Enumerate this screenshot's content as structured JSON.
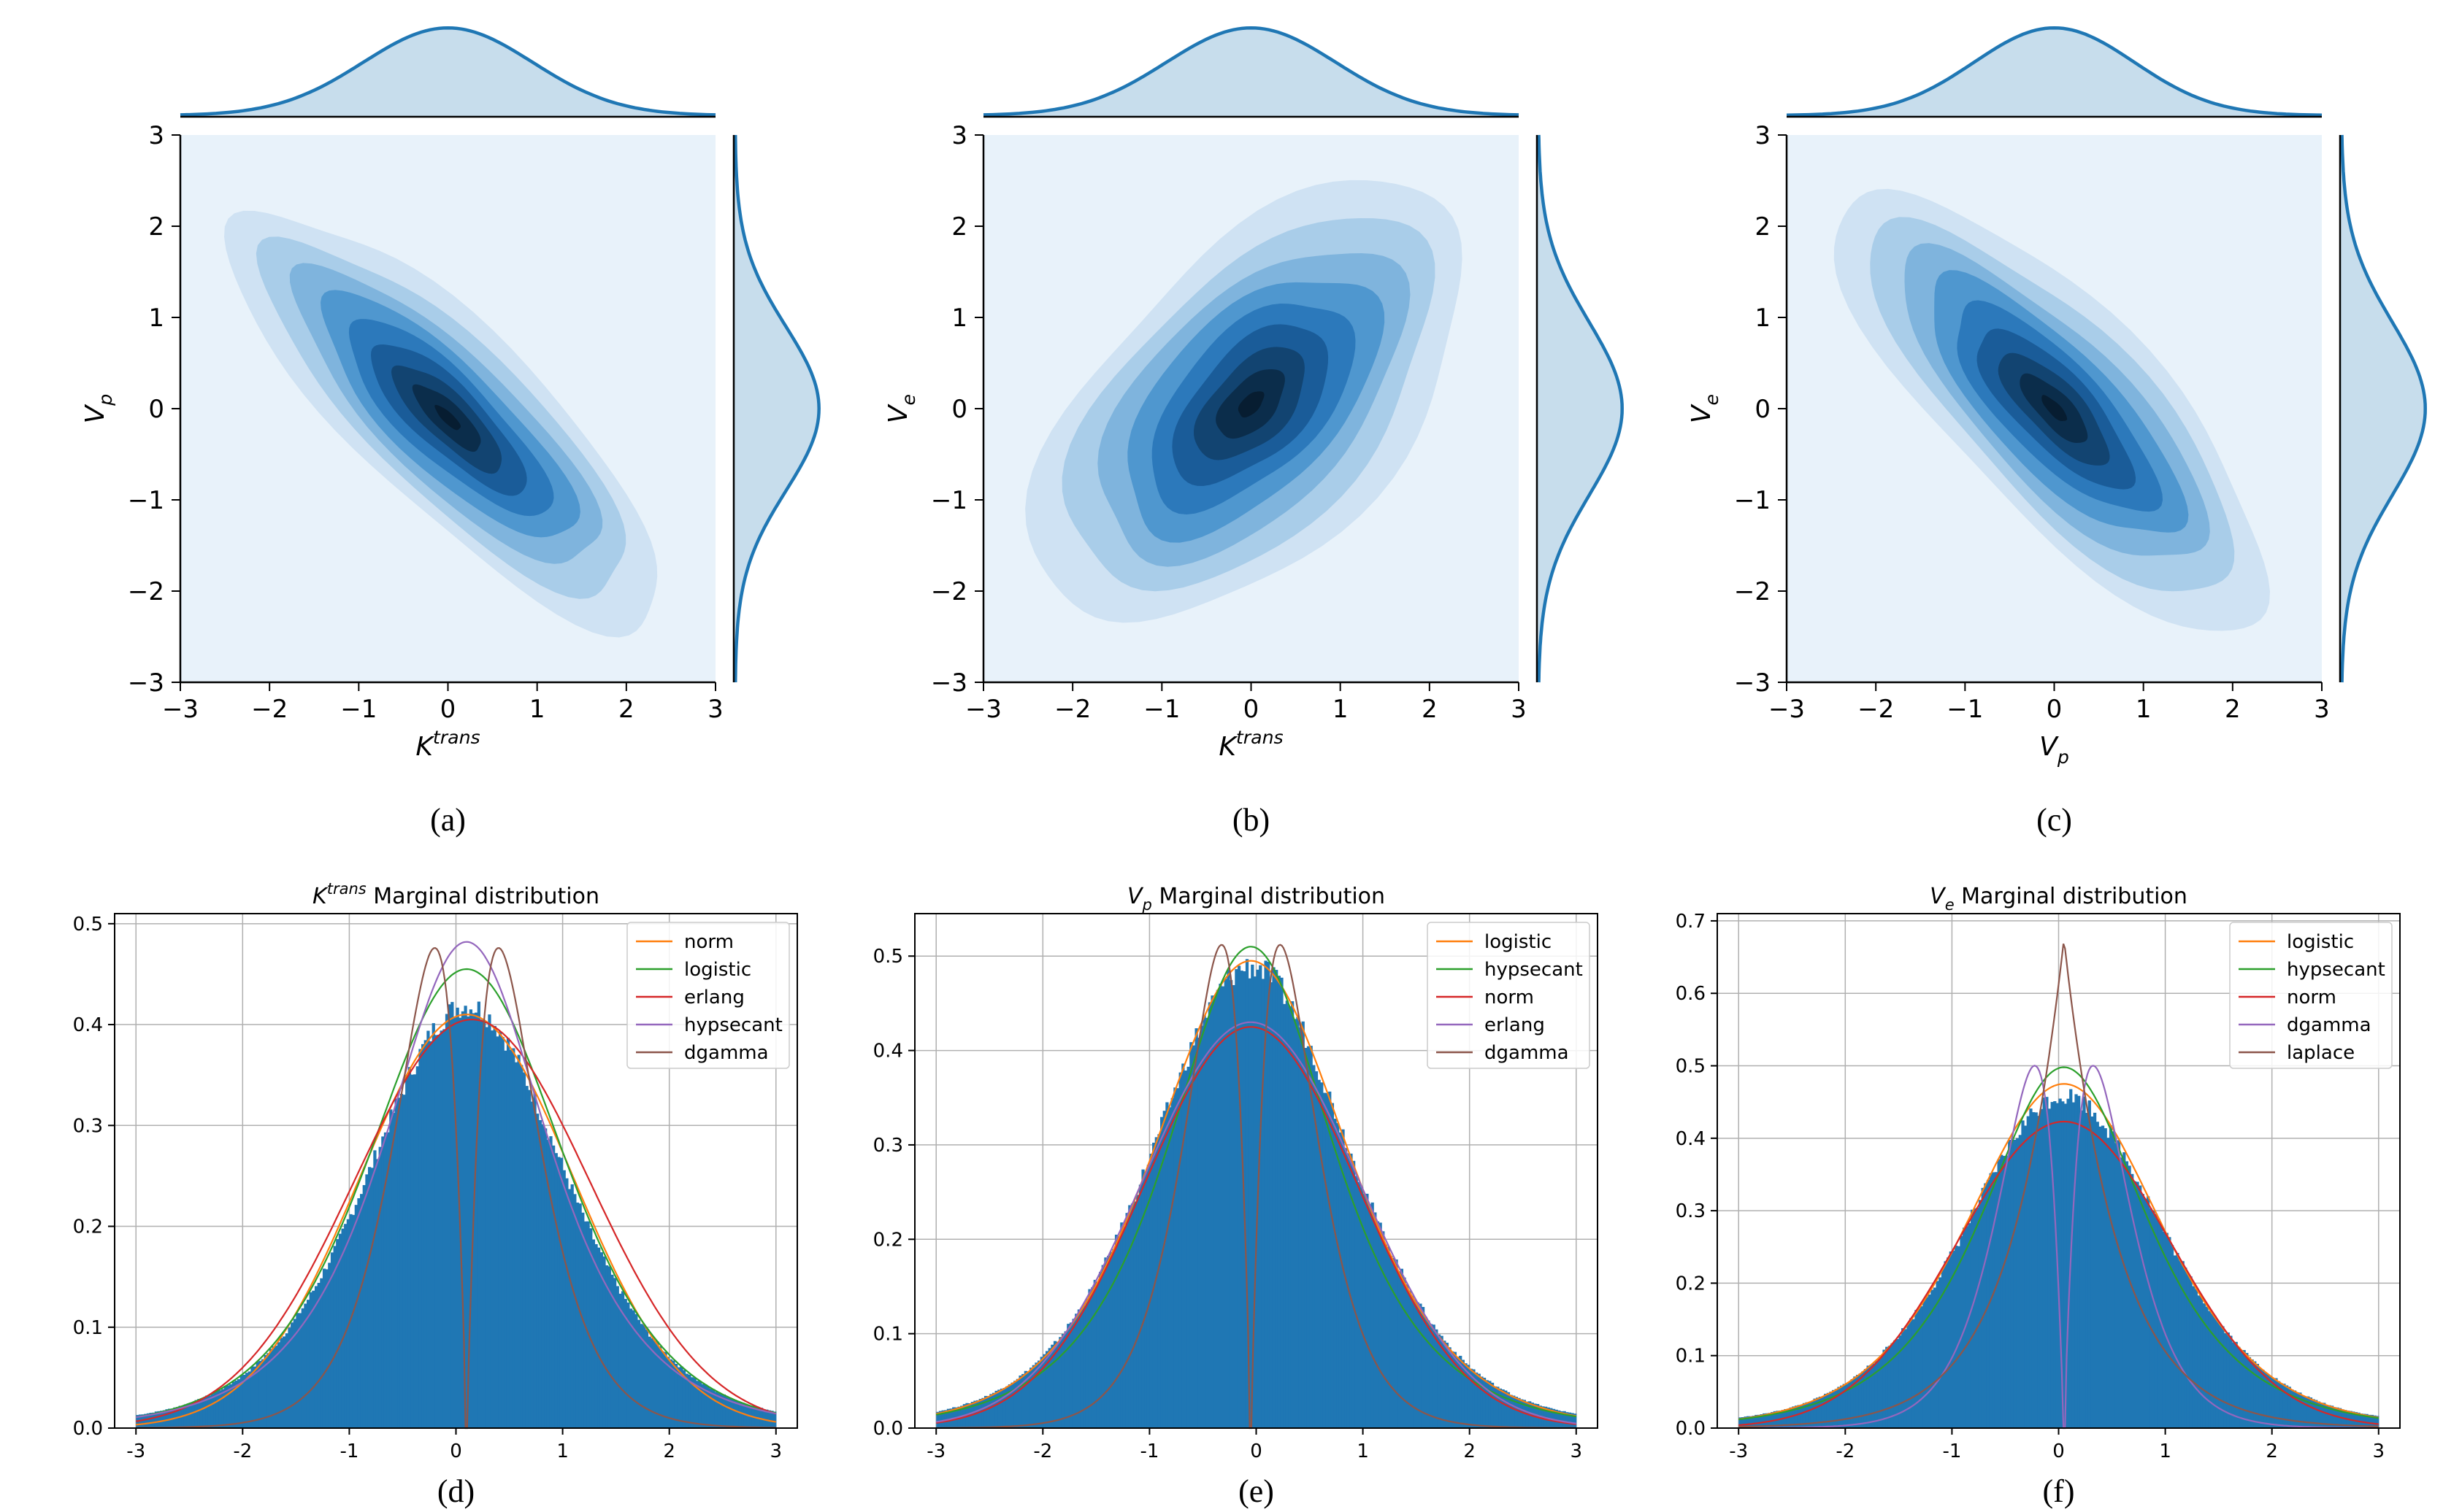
{
  "colors": {
    "fill_blue": "#1f77b4",
    "kde_bg": "#e8f2fa",
    "axis": "#000000",
    "grid": "#b0b0b0",
    "series_palette": [
      "#ff7f0e",
      "#2ca02c",
      "#d62728",
      "#9467bd",
      "#8c564b"
    ]
  },
  "chart_data": [
    {
      "type": "kde2d",
      "id": "a",
      "caption": "(a)",
      "xlabel": "K^trans",
      "xlabel_base": "K",
      "xlabel_sup": "trans",
      "ylabel": "V_p",
      "ylabel_base": "V",
      "ylabel_sub": "p",
      "xlim": [
        -3,
        3
      ],
      "ylim": [
        -3,
        3
      ],
      "xticks": [
        "−3",
        "−2",
        "−1",
        "0",
        "1",
        "2",
        "3"
      ],
      "yticks": [
        "−3",
        "−2",
        "−1",
        "0",
        "1",
        "2",
        "3"
      ],
      "center": [
        0,
        -0.1
      ],
      "sx": 0.95,
      "sy": 0.9,
      "rho": -0.82,
      "marginal_x": {
        "mean": 0,
        "sd": 0.95
      },
      "marginal_y": {
        "mean": 0,
        "sd": 0.9
      }
    },
    {
      "type": "kde2d",
      "id": "b",
      "caption": "(b)",
      "xlabel": "K^trans",
      "xlabel_base": "K",
      "xlabel_sup": "trans",
      "ylabel": "V_e",
      "ylabel_base": "V",
      "ylabel_sub": "e",
      "xlim": [
        -3,
        3
      ],
      "ylim": [
        -3,
        3
      ],
      "xticks": [
        "−3",
        "−2",
        "−1",
        "0",
        "1",
        "2",
        "3"
      ],
      "yticks": [
        "−3",
        "−2",
        "−1",
        "0",
        "1",
        "2",
        "3"
      ],
      "center": [
        0,
        0.05
      ],
      "sx": 0.95,
      "sy": 0.95,
      "rho": 0.55,
      "marginal_x": {
        "mean": 0,
        "sd": 0.95
      },
      "marginal_y": {
        "mean": 0,
        "sd": 0.95
      }
    },
    {
      "type": "kde2d",
      "id": "c",
      "caption": "(c)",
      "xlabel": "V_p",
      "xlabel_base": "V",
      "xlabel_sub": "p",
      "ylabel": "V_e",
      "ylabel_base": "V",
      "ylabel_sub": "e",
      "xlim": [
        -3,
        3
      ],
      "ylim": [
        -3,
        3
      ],
      "xticks": [
        "−3",
        "−2",
        "−1",
        "0",
        "1",
        "2",
        "3"
      ],
      "yticks": [
        "−3",
        "−2",
        "−1",
        "0",
        "1",
        "2",
        "3"
      ],
      "center": [
        0,
        0.0
      ],
      "sx": 0.95,
      "sy": 0.95,
      "rho": -0.78,
      "marginal_x": {
        "mean": 0,
        "sd": 0.9
      },
      "marginal_y": {
        "mean": 0,
        "sd": 0.95
      }
    },
    {
      "type": "histogram",
      "id": "d",
      "caption": "(d)",
      "title": "K^trans  Marginal distribution",
      "title_base": "K",
      "title_sup": "trans",
      "title_sub": "",
      "title_rest": "  Marginal distribution",
      "xlim": [
        -3.2,
        3.2
      ],
      "ylim": [
        0,
        0.51
      ],
      "xticks": [
        -3,
        -2,
        -1,
        0,
        1,
        2,
        3
      ],
      "xtick_labels": [
        "-3",
        "-2",
        "-1",
        "0",
        "1",
        "2",
        "3"
      ],
      "yticks": [
        0,
        0.1,
        0.2,
        0.3,
        0.4,
        0.5
      ],
      "ytick_labels": [
        "0.0",
        "0.1",
        "0.2",
        "0.3",
        "0.4",
        "0.5"
      ],
      "hist_peak": 0.415,
      "hist_loc": 0.1,
      "series": [
        {
          "name": "norm",
          "color": "#ff7f0e",
          "kind": "normal",
          "loc": 0.1,
          "peak": 0.41
        },
        {
          "name": "logistic",
          "color": "#2ca02c",
          "kind": "logistic",
          "loc": 0.1,
          "peak": 0.455
        },
        {
          "name": "erlang",
          "color": "#d62728",
          "kind": "normal",
          "loc": 0.15,
          "peak": 0.405,
          "wide": 1.1
        },
        {
          "name": "hypsecant",
          "color": "#9467bd",
          "kind": "hypsecant",
          "loc": 0.1,
          "peak": 0.482
        },
        {
          "name": "dgamma",
          "color": "#8c564b",
          "kind": "dgamma",
          "loc": 0.1,
          "peak": 0.483,
          "notch": 0.33
        }
      ]
    },
    {
      "type": "histogram",
      "id": "e",
      "caption": "(e)",
      "title": "V_p  Marginal distribution",
      "title_base": "V",
      "title_sup": "",
      "title_sub": "p",
      "title_rest": "  Marginal distribution",
      "xlim": [
        -3.2,
        3.2
      ],
      "ylim": [
        0,
        0.545
      ],
      "xticks": [
        -3,
        -2,
        -1,
        0,
        1,
        2,
        3
      ],
      "xtick_labels": [
        "-3",
        "-2",
        "-1",
        "0",
        "1",
        "2",
        "3"
      ],
      "yticks": [
        0,
        0.1,
        0.2,
        0.3,
        0.4,
        0.5
      ],
      "ytick_labels": [
        "0.0",
        "0.1",
        "0.2",
        "0.3",
        "0.4",
        "0.5"
      ],
      "hist_peak": 0.485,
      "hist_loc": -0.05,
      "series": [
        {
          "name": "logistic",
          "color": "#ff7f0e",
          "kind": "logistic",
          "loc": -0.05,
          "peak": 0.495
        },
        {
          "name": "hypsecant",
          "color": "#2ca02c",
          "kind": "hypsecant",
          "loc": -0.05,
          "peak": 0.51
        },
        {
          "name": "norm",
          "color": "#d62728",
          "kind": "normal",
          "loc": -0.05,
          "peak": 0.425
        },
        {
          "name": "erlang",
          "color": "#9467bd",
          "kind": "normal",
          "loc": -0.05,
          "peak": 0.43,
          "wide": 1.02
        },
        {
          "name": "dgamma",
          "color": "#8c564b",
          "kind": "dgamma",
          "loc": -0.05,
          "peak": 0.52,
          "notch": 0.3
        }
      ]
    },
    {
      "type": "histogram",
      "id": "f",
      "caption": "(f)",
      "title": "V_e  Marginal distribution",
      "title_base": "V",
      "title_sup": "",
      "title_sub": "e",
      "title_rest": "  Marginal distribution",
      "xlim": [
        -3.2,
        3.2
      ],
      "ylim": [
        0,
        0.71
      ],
      "xticks": [
        -3,
        -2,
        -1,
        0,
        1,
        2,
        3
      ],
      "xtick_labels": [
        "-3",
        "-2",
        "-1",
        "0",
        "1",
        "2",
        "3"
      ],
      "yticks": [
        0,
        0.1,
        0.2,
        0.3,
        0.4,
        0.5,
        0.6,
        0.7
      ],
      "ytick_labels": [
        "0.0",
        "0.1",
        "0.2",
        "0.3",
        "0.4",
        "0.5",
        "0.6",
        "0.7"
      ],
      "hist_peak": 0.455,
      "hist_loc": 0.05,
      "series": [
        {
          "name": "logistic",
          "color": "#ff7f0e",
          "kind": "logistic",
          "loc": 0.05,
          "peak": 0.475
        },
        {
          "name": "hypsecant",
          "color": "#2ca02c",
          "kind": "hypsecant",
          "loc": 0.05,
          "peak": 0.498
        },
        {
          "name": "norm",
          "color": "#d62728",
          "kind": "normal",
          "loc": 0.05,
          "peak": 0.423
        },
        {
          "name": "dgamma",
          "color": "#9467bd",
          "kind": "dgamma",
          "loc": 0.05,
          "peak": 0.508,
          "notch": 0.3
        },
        {
          "name": "laplace",
          "color": "#8c564b",
          "kind": "laplace",
          "loc": 0.05,
          "peak": 0.675
        }
      ]
    }
  ]
}
